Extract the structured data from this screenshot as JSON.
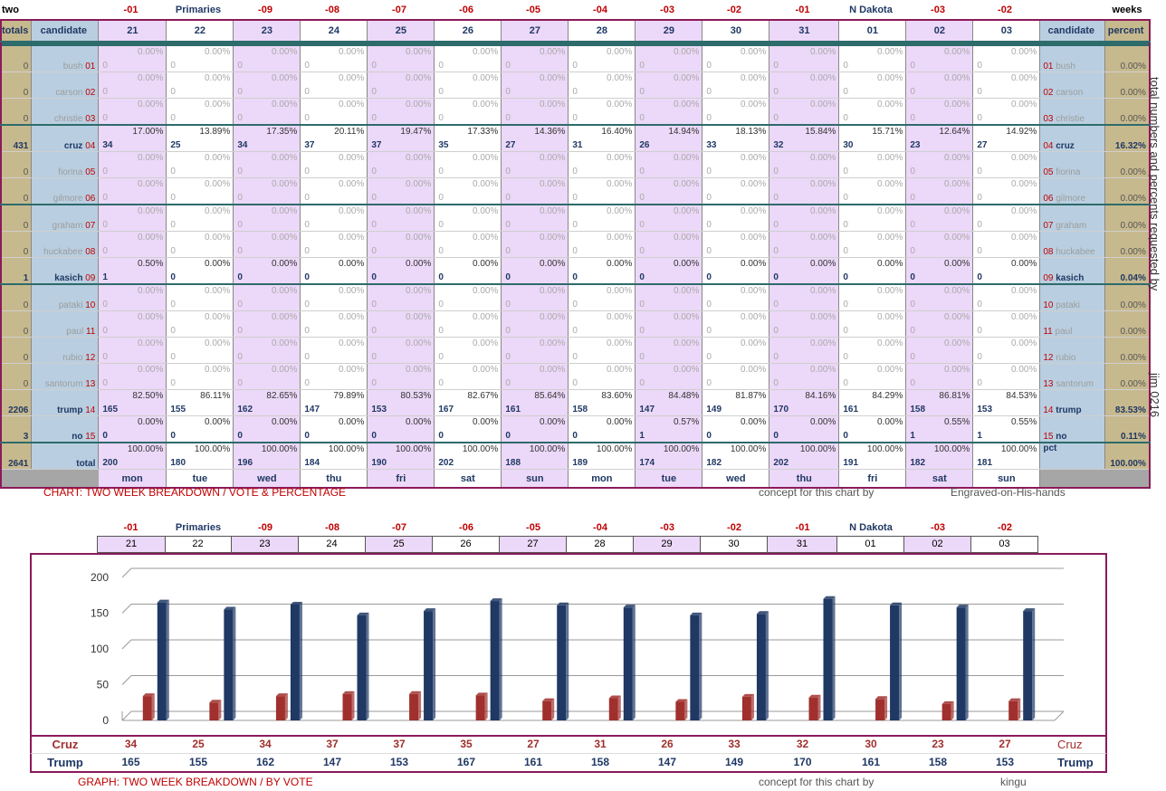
{
  "top_header": {
    "left": "two",
    "right": "weeks",
    "cols": [
      "-01",
      "Primaries",
      "-09",
      "-08",
      "-07",
      "-06",
      "-05",
      "-04",
      "-03",
      "-02",
      "-01",
      "N Dakota",
      "-03",
      "-02"
    ]
  },
  "table": {
    "col_totals": "totals",
    "col_candidate": "candidate",
    "col_percent": "percent",
    "dates": [
      "21",
      "22",
      "23",
      "24",
      "25",
      "26",
      "27",
      "28",
      "29",
      "30",
      "31",
      "01",
      "02",
      "03"
    ],
    "days": [
      "mon",
      "tue",
      "wed",
      "thu",
      "fri",
      "sat",
      "sun",
      "mon",
      "tue",
      "wed",
      "thu",
      "fri",
      "sat",
      "sun"
    ],
    "zero_value": "0",
    "zero_pct": "0.00%",
    "rows": [
      {
        "name": "bush",
        "num": "01",
        "total": "0",
        "pct": "0.00%"
      },
      {
        "name": "carson",
        "num": "02",
        "total": "0",
        "pct": "0.00%"
      },
      {
        "name": "christie",
        "num": "03",
        "total": "0",
        "pct": "0.00%"
      },
      {
        "name": "cruz",
        "num": "04",
        "total": "431",
        "pct": "16.32%",
        "values": [
          "34",
          "25",
          "34",
          "37",
          "37",
          "35",
          "27",
          "31",
          "26",
          "33",
          "32",
          "30",
          "23",
          "27"
        ],
        "pcts": [
          "17.00%",
          "13.89%",
          "17.35%",
          "20.11%",
          "19.47%",
          "17.33%",
          "14.36%",
          "16.40%",
          "14.94%",
          "18.13%",
          "15.84%",
          "15.71%",
          "12.64%",
          "14.92%"
        ]
      },
      {
        "name": "fiorina",
        "num": "05",
        "total": "0",
        "pct": "0.00%"
      },
      {
        "name": "gilmore",
        "num": "06",
        "total": "0",
        "pct": "0.00%"
      },
      {
        "name": "graham",
        "num": "07",
        "total": "0",
        "pct": "0.00%"
      },
      {
        "name": "huckabee",
        "num": "08",
        "total": "0",
        "pct": "0.00%"
      },
      {
        "name": "kasich",
        "num": "09",
        "total": "1",
        "pct": "0.04%",
        "values": [
          "1",
          "0",
          "0",
          "0",
          "0",
          "0",
          "0",
          "0",
          "0",
          "0",
          "0",
          "0",
          "0",
          "0"
        ],
        "pcts": [
          "0.50%",
          "0.00%",
          "0.00%",
          "0.00%",
          "0.00%",
          "0.00%",
          "0.00%",
          "0.00%",
          "0.00%",
          "0.00%",
          "0.00%",
          "0.00%",
          "0.00%",
          "0.00%"
        ]
      },
      {
        "name": "pataki",
        "num": "10",
        "total": "0",
        "pct": "0.00%"
      },
      {
        "name": "paul",
        "num": "11",
        "total": "0",
        "pct": "0.00%"
      },
      {
        "name": "rubio",
        "num": "12",
        "total": "0",
        "pct": "0.00%"
      },
      {
        "name": "santorum",
        "num": "13",
        "total": "0",
        "pct": "0.00%"
      },
      {
        "name": "trump",
        "num": "14",
        "total": "2206",
        "pct": "83.53%",
        "values": [
          "165",
          "155",
          "162",
          "147",
          "153",
          "167",
          "161",
          "158",
          "147",
          "149",
          "170",
          "161",
          "158",
          "153"
        ],
        "pcts": [
          "82.50%",
          "86.11%",
          "82.65%",
          "79.89%",
          "80.53%",
          "82.67%",
          "85.64%",
          "83.60%",
          "84.48%",
          "81.87%",
          "84.16%",
          "84.29%",
          "86.81%",
          "84.53%"
        ]
      },
      {
        "name": "no",
        "num": "15",
        "total": "3",
        "pct": "0.11%",
        "values": [
          "0",
          "0",
          "0",
          "0",
          "0",
          "0",
          "0",
          "0",
          "1",
          "0",
          "0",
          "0",
          "1",
          "1"
        ],
        "pcts": [
          "0.00%",
          "0.00%",
          "0.00%",
          "0.00%",
          "0.00%",
          "0.00%",
          "0.00%",
          "0.00%",
          "0.57%",
          "0.00%",
          "0.00%",
          "0.00%",
          "0.55%",
          "0.55%"
        ]
      }
    ],
    "total_row": {
      "total": "2641",
      "label": "total",
      "pct_label": "pct",
      "pct": "100.00%",
      "values": [
        "200",
        "180",
        "196",
        "184",
        "190",
        "202",
        "188",
        "189",
        "174",
        "182",
        "202",
        "191",
        "182",
        "181"
      ],
      "pct_each": "100.00%"
    }
  },
  "side_text": "total numbers and percents requested by",
  "side_sig": "jim 0216",
  "caption1": {
    "left": "CHART: TWO WEEK BREAKDOWN / VOTE & PERCENTAGE",
    "mid": "concept for this chart by",
    "right": "Engraved-on-His-hands"
  },
  "caption2": {
    "left": "GRAPH: TWO WEEK BREAKDOWN / BY VOTE",
    "mid": "concept for this chart by",
    "right": "kingu"
  },
  "colors": {
    "cruz": "#a0302d",
    "trump": "#1f3864",
    "pink": "#ecd8f8",
    "blue": "#b9cfe1",
    "tan": "#c7b98e",
    "border": "#8b1a5a"
  },
  "chart_data": {
    "type": "bar",
    "categories": [
      "21",
      "22",
      "23",
      "24",
      "25",
      "26",
      "27",
      "28",
      "29",
      "30",
      "31",
      "01",
      "02",
      "03"
    ],
    "series": [
      {
        "name": "Cruz",
        "values": [
          34,
          25,
          34,
          37,
          37,
          35,
          27,
          31,
          26,
          33,
          32,
          30,
          23,
          27
        ]
      },
      {
        "name": "Trump",
        "values": [
          165,
          155,
          162,
          147,
          153,
          167,
          161,
          158,
          147,
          149,
          170,
          161,
          158,
          153
        ]
      }
    ],
    "title": "",
    "ylim": [
      0,
      200
    ],
    "yticks": [
      "0",
      "50",
      "100",
      "150",
      "200"
    ],
    "grid": true
  }
}
